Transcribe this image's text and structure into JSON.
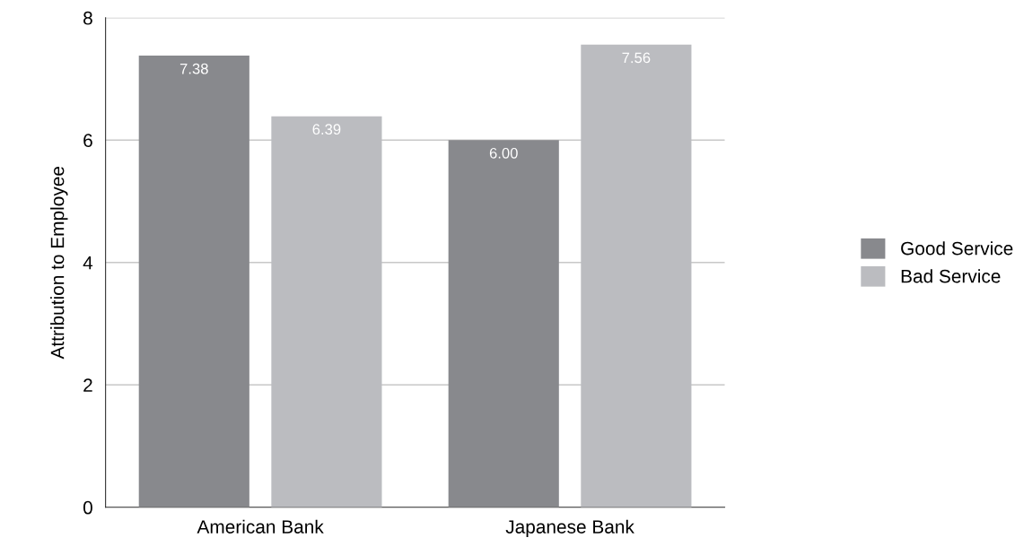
{
  "chart_data": {
    "type": "bar",
    "ylabel": "Attribution to Employee",
    "categories": [
      "American Bank",
      "Japanese Bank"
    ],
    "series": [
      {
        "name": "Good Service",
        "color": "#88898d",
        "values": [
          7.38,
          6.0
        ],
        "value_labels": [
          "7.38",
          "6.00"
        ]
      },
      {
        "name": "Bad Service",
        "color": "#bbbcc0",
        "values": [
          6.39,
          7.56
        ],
        "value_labels": [
          "6.39",
          "7.56"
        ]
      }
    ],
    "ylim": [
      0,
      8
    ],
    "yticks": [
      0,
      2,
      4,
      6,
      8
    ],
    "grid": "y",
    "legend": "right"
  }
}
